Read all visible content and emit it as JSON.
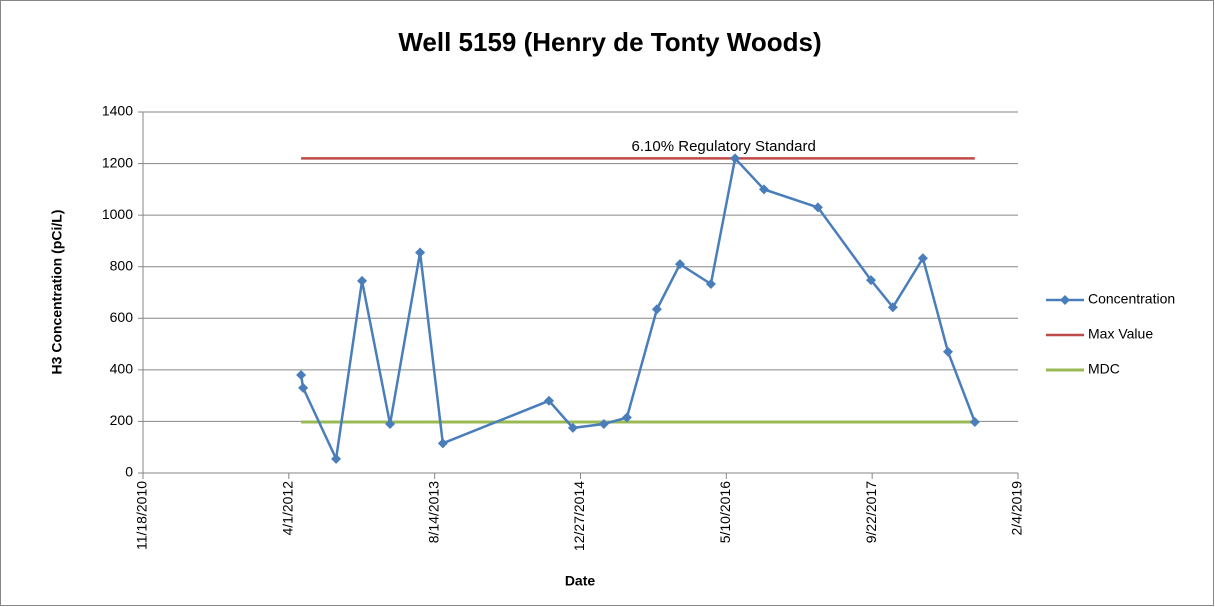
{
  "chart_data": {
    "type": "line",
    "title": "Well 5159 (Henry de Tonty Woods)",
    "xlabel": "Date",
    "ylabel": "H3 Concentration (pCi/L)",
    "annotation": "6.10% Regulatory Standard",
    "annotation_x": "5/1/2016",
    "annotation_y": 1265,
    "xlim": [
      "11/18/2010",
      "2/4/2019"
    ],
    "xticks": [
      "11/18/2010",
      "4/1/2012",
      "8/14/2013",
      "12/27/2014",
      "5/10/2016",
      "9/22/2017",
      "2/4/2019"
    ],
    "ylim": [
      0,
      1400
    ],
    "yticks": [
      0,
      200,
      400,
      600,
      800,
      1000,
      1200,
      1400
    ],
    "grid": true,
    "legend": "right",
    "series": [
      {
        "name": "Concentration",
        "color": "#4a7ebb",
        "marker": "diamond",
        "x": [
          "5/13/2012",
          "5/20/2012",
          "9/10/2012",
          "12/8/2012",
          "3/14/2013",
          "6/25/2013",
          "9/11/2013",
          "9/10/2014",
          "12/1/2014",
          "3/17/2015",
          "6/4/2015",
          "9/15/2015",
          "12/3/2015",
          "3/18/2016",
          "6/9/2016",
          "9/16/2016",
          "3/20/2017",
          "9/18/2017",
          "12/2/2017",
          "3/15/2018",
          "6/9/2018",
          "9/9/2018"
        ],
        "values": [
          380,
          330,
          55,
          745,
          190,
          855,
          115,
          280,
          175,
          190,
          215,
          635,
          810,
          733,
          1220,
          1100,
          1030,
          748,
          643,
          833,
          470,
          198
        ]
      },
      {
        "name": "Max Value",
        "color": "#be4b48",
        "marker": "none",
        "x": [
          "5/13/2012",
          "9/9/2018"
        ],
        "values": [
          1220,
          1220
        ]
      },
      {
        "name": "MDC",
        "color": "#98b954",
        "marker": "none",
        "width": 3,
        "x": [
          "5/13/2012",
          "9/9/2018"
        ],
        "values": [
          198,
          198
        ]
      }
    ]
  }
}
